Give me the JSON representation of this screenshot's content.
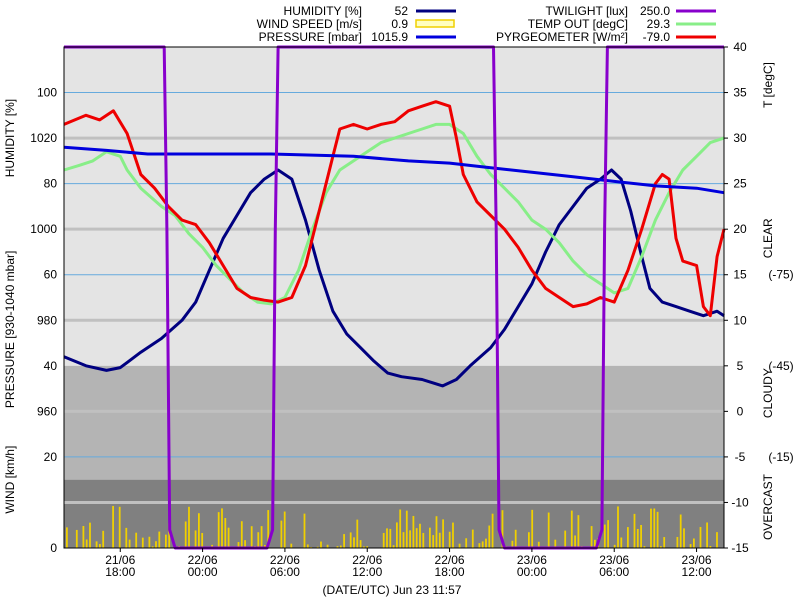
{
  "footer": {
    "label": "(DATE/UTC) Jun 23 11:57"
  },
  "colors": {
    "humidity": "#000080",
    "wind": "#f0d000",
    "pressure": "#0000dd",
    "twilight": "#8800cc",
    "temp": "#88ee88",
    "pyrg": "#ee0000",
    "bg_clear": "#e4e4e4",
    "bg_cloudy": "#b4b4b4",
    "bg_overcast": "#808080"
  },
  "chart_data": {
    "type": "line",
    "legend": [
      {
        "key": "humidity",
        "name": "HUMIDITY [%]",
        "value": "52",
        "style": "line"
      },
      {
        "key": "wind",
        "name": "WIND SPEED [m/s]",
        "value": "0.9",
        "style": "box"
      },
      {
        "key": "pressure",
        "name": "PRESSURE [mbar]",
        "value": "1015.9",
        "style": "line"
      },
      {
        "key": "twilight",
        "name": "TWILIGHT [lux]",
        "value": "250.0",
        "style": "line"
      },
      {
        "key": "temp",
        "name": "TEMP OUT [degC]",
        "value": "29.3",
        "style": "line"
      },
      {
        "key": "pyrg",
        "name": "PYRGEOMETER [W/m²]",
        "value": "-79.0",
        "style": "line"
      }
    ],
    "x_ticks": [
      {
        "t": 3,
        "date": "21/06",
        "time": "18:00"
      },
      {
        "t": 9,
        "date": "22/06",
        "time": "00:00"
      },
      {
        "t": 15,
        "date": "22/06",
        "time": "06:00"
      },
      {
        "t": 21,
        "date": "22/06",
        "time": "12:00"
      },
      {
        "t": 27,
        "date": "22/06",
        "time": "18:00"
      },
      {
        "t": 33,
        "date": "23/06",
        "time": "00:00"
      },
      {
        "t": 39,
        "date": "23/06",
        "time": "06:00"
      },
      {
        "t": 45,
        "date": "23/06",
        "time": "12:00"
      }
    ],
    "x_range": [
      -1.1,
      47.0
    ],
    "right_axis": {
      "label": "T [degC]",
      "range": [
        -15,
        40
      ],
      "ticks": [
        "40",
        "35",
        "30",
        "25",
        "20",
        "15",
        "10",
        "5",
        "0",
        "-5",
        "-10",
        "-15"
      ]
    },
    "left_labels": [
      {
        "text": "100",
        "t": 35
      },
      {
        "text": "1020",
        "t": 30
      },
      {
        "text": "80",
        "t": 25
      },
      {
        "text": "1000",
        "t": 20
      },
      {
        "text": "60",
        "t": 15
      },
      {
        "text": "980",
        "t": 10
      },
      {
        "text": "40",
        "t": 5
      },
      {
        "text": "960",
        "t": 0
      },
      {
        "text": "20",
        "t": -5
      },
      {
        "text": "0",
        "t": -15
      }
    ],
    "left_axis_labels": [
      {
        "text": "HUMIDITY [%]",
        "t": 30
      },
      {
        "text": "PRESSURE [930-1040 mbar]",
        "t": 9
      },
      {
        "text": "WIND [km/h]",
        "t": -7.5
      }
    ],
    "sky_labels": [
      {
        "text": "CLEAR",
        "t": 19
      },
      {
        "text": "CLOUDY",
        "t": 2
      },
      {
        "text": "OVERCAST",
        "t": -10.5
      }
    ],
    "sky_values": [
      {
        "text": "(-75)",
        "t": 15
      },
      {
        "text": "(-45)",
        "t": 5
      },
      {
        "text": "(-15)",
        "t": -5
      }
    ],
    "zones": [
      {
        "key": "bg_clear",
        "from": 5,
        "to": 40
      },
      {
        "key": "bg_cloudy",
        "from": -7.5,
        "to": 5
      },
      {
        "key": "bg_overcast",
        "from": -15,
        "to": -7.5
      }
    ],
    "thin_grid": [
      35,
      25,
      15,
      -5
    ],
    "thick_grid": [
      30,
      20,
      10,
      0,
      -10
    ],
    "series": [
      {
        "key": "humidity",
        "points": [
          [
            -1.1,
            6.0
          ],
          [
            0.5,
            5.0
          ],
          [
            2.0,
            4.5
          ],
          [
            3.0,
            4.8
          ],
          [
            4.5,
            6.5
          ],
          [
            6.0,
            8.0
          ],
          [
            7.5,
            10.0
          ],
          [
            8.5,
            12.0
          ],
          [
            9.5,
            15.5
          ],
          [
            10.5,
            19.0
          ],
          [
            11.5,
            21.5
          ],
          [
            12.5,
            24.0
          ],
          [
            13.5,
            25.5
          ],
          [
            14.5,
            26.5
          ],
          [
            15.5,
            25.5
          ],
          [
            16.5,
            21.0
          ],
          [
            17.5,
            15.5
          ],
          [
            18.5,
            11.0
          ],
          [
            19.5,
            8.5
          ],
          [
            20.5,
            7.0
          ],
          [
            21.5,
            5.5
          ],
          [
            22.5,
            4.2
          ],
          [
            23.5,
            3.8
          ],
          [
            25.0,
            3.5
          ],
          [
            26.5,
            2.8
          ],
          [
            27.5,
            3.5
          ],
          [
            28.5,
            5.0
          ],
          [
            30.0,
            7.0
          ],
          [
            31.0,
            9.0
          ],
          [
            32.0,
            11.5
          ],
          [
            33.0,
            14.0
          ],
          [
            34.0,
            17.5
          ],
          [
            35.0,
            20.5
          ],
          [
            36.0,
            22.5
          ],
          [
            37.0,
            24.5
          ],
          [
            38.0,
            25.5
          ],
          [
            38.8,
            26.5
          ],
          [
            39.5,
            25.5
          ],
          [
            40.2,
            22.0
          ],
          [
            41.0,
            17.0
          ],
          [
            41.6,
            13.5
          ],
          [
            42.5,
            12.0
          ],
          [
            43.5,
            11.5
          ],
          [
            44.5,
            11.0
          ],
          [
            45.5,
            10.5
          ],
          [
            46.5,
            11.0
          ],
          [
            47.0,
            10.5
          ]
        ]
      },
      {
        "key": "temp",
        "points": [
          [
            -1.1,
            26.5
          ],
          [
            0.0,
            27.0
          ],
          [
            1.0,
            27.5
          ],
          [
            2.0,
            28.5
          ],
          [
            3.0,
            28.0
          ],
          [
            3.5,
            26.5
          ],
          [
            4.5,
            24.5
          ],
          [
            6.0,
            22.5
          ],
          [
            7.0,
            21.5
          ],
          [
            8.0,
            19.5
          ],
          [
            9.0,
            18.0
          ],
          [
            10.0,
            16.0
          ],
          [
            11.0,
            14.5
          ],
          [
            12.0,
            13.0
          ],
          [
            13.0,
            12.0
          ],
          [
            14.0,
            11.8
          ],
          [
            15.0,
            12.5
          ],
          [
            16.0,
            15.5
          ],
          [
            17.0,
            20.0
          ],
          [
            18.0,
            24.0
          ],
          [
            19.0,
            26.5
          ],
          [
            20.0,
            27.5
          ],
          [
            21.0,
            28.5
          ],
          [
            22.0,
            29.5
          ],
          [
            23.0,
            30.0
          ],
          [
            24.0,
            30.5
          ],
          [
            25.0,
            31.0
          ],
          [
            26.0,
            31.5
          ],
          [
            27.0,
            31.5
          ],
          [
            28.0,
            30.5
          ],
          [
            29.0,
            28.0
          ],
          [
            30.0,
            26.0
          ],
          [
            31.0,
            24.5
          ],
          [
            32.0,
            23.0
          ],
          [
            33.0,
            21.0
          ],
          [
            34.0,
            20.0
          ],
          [
            35.0,
            18.5
          ],
          [
            36.0,
            16.5
          ],
          [
            37.0,
            15.0
          ],
          [
            38.0,
            14.0
          ],
          [
            39.0,
            13.0
          ],
          [
            40.0,
            13.5
          ],
          [
            41.0,
            17.0
          ],
          [
            42.0,
            21.0
          ],
          [
            43.0,
            24.0
          ],
          [
            44.0,
            26.5
          ],
          [
            45.0,
            28.0
          ],
          [
            46.0,
            29.5
          ],
          [
            47.0,
            30.0
          ]
        ]
      },
      {
        "key": "pyrg",
        "points": [
          [
            -1.1,
            31.5
          ],
          [
            0.5,
            32.5
          ],
          [
            1.5,
            32.0
          ],
          [
            2.5,
            33.0
          ],
          [
            3.5,
            30.5
          ],
          [
            4.5,
            26.0
          ],
          [
            5.5,
            24.5
          ],
          [
            6.5,
            22.5
          ],
          [
            7.5,
            21.0
          ],
          [
            8.5,
            20.5
          ],
          [
            9.5,
            18.5
          ],
          [
            10.5,
            16.0
          ],
          [
            11.5,
            13.5
          ],
          [
            12.5,
            12.5
          ],
          [
            13.5,
            12.2
          ],
          [
            14.5,
            12.0
          ],
          [
            15.5,
            12.5
          ],
          [
            16.5,
            16.0
          ],
          [
            17.5,
            22.0
          ],
          [
            18.5,
            28.0
          ],
          [
            19.0,
            31.0
          ],
          [
            20.0,
            31.5
          ],
          [
            21.0,
            31.0
          ],
          [
            22.0,
            31.5
          ],
          [
            23.0,
            31.8
          ],
          [
            24.0,
            33.0
          ],
          [
            25.0,
            33.5
          ],
          [
            26.0,
            34.0
          ],
          [
            27.0,
            33.5
          ],
          [
            27.5,
            30.0
          ],
          [
            28.0,
            26.0
          ],
          [
            29.0,
            23.0
          ],
          [
            30.0,
            21.5
          ],
          [
            31.0,
            20.0
          ],
          [
            32.0,
            18.0
          ],
          [
            33.0,
            15.5
          ],
          [
            34.0,
            13.5
          ],
          [
            35.0,
            12.5
          ],
          [
            36.0,
            11.5
          ],
          [
            37.0,
            11.8
          ],
          [
            38.0,
            12.5
          ],
          [
            39.0,
            12.0
          ],
          [
            40.0,
            15.5
          ],
          [
            41.0,
            20.0
          ],
          [
            42.0,
            25.0
          ],
          [
            42.5,
            26.0
          ],
          [
            43.0,
            25.5
          ],
          [
            43.5,
            19.0
          ],
          [
            44.0,
            16.5
          ],
          [
            45.0,
            16.0
          ],
          [
            45.5,
            11.5
          ],
          [
            46.0,
            10.5
          ],
          [
            46.5,
            17.0
          ],
          [
            47.0,
            20.0
          ]
        ]
      },
      {
        "key": "pressure",
        "points": [
          [
            -1.1,
            1018.0
          ],
          [
            2.0,
            1017.3
          ],
          [
            5.0,
            1016.5
          ],
          [
            9.0,
            1016.5
          ],
          [
            14.0,
            1016.5
          ],
          [
            20.0,
            1016.0
          ],
          [
            24.0,
            1015.0
          ],
          [
            27.0,
            1014.5
          ],
          [
            30.0,
            1013.5
          ],
          [
            33.0,
            1012.5
          ],
          [
            36.0,
            1011.5
          ],
          [
            39.0,
            1010.5
          ],
          [
            42.0,
            1009.5
          ],
          [
            45.0,
            1009.0
          ],
          [
            47.0,
            1008.0
          ]
        ]
      },
      {
        "key": "twilight",
        "points": [
          [
            -1.1,
            40.0
          ],
          [
            6.2,
            40.0
          ],
          [
            6.4,
            20.0
          ],
          [
            6.6,
            -13.0
          ],
          [
            7.0,
            -15.0
          ],
          [
            13.7,
            -15.0
          ],
          [
            14.1,
            -13.0
          ],
          [
            14.3,
            20.0
          ],
          [
            14.5,
            40.0
          ],
          [
            30.2,
            40.0
          ],
          [
            30.4,
            20.0
          ],
          [
            30.6,
            -13.0
          ],
          [
            31.0,
            -15.0
          ],
          [
            37.7,
            -15.0
          ],
          [
            38.1,
            -13.0
          ],
          [
            38.3,
            20.0
          ],
          [
            38.5,
            40.0
          ],
          [
            47.0,
            40.0
          ]
        ]
      }
    ],
    "pressure_scale": {
      "from": [
        960,
        1020
      ],
      "to": [
        0,
        30
      ]
    },
    "wind_bars": {
      "base": -15,
      "cap": -10.2,
      "bar_width": 0.13
    }
  }
}
